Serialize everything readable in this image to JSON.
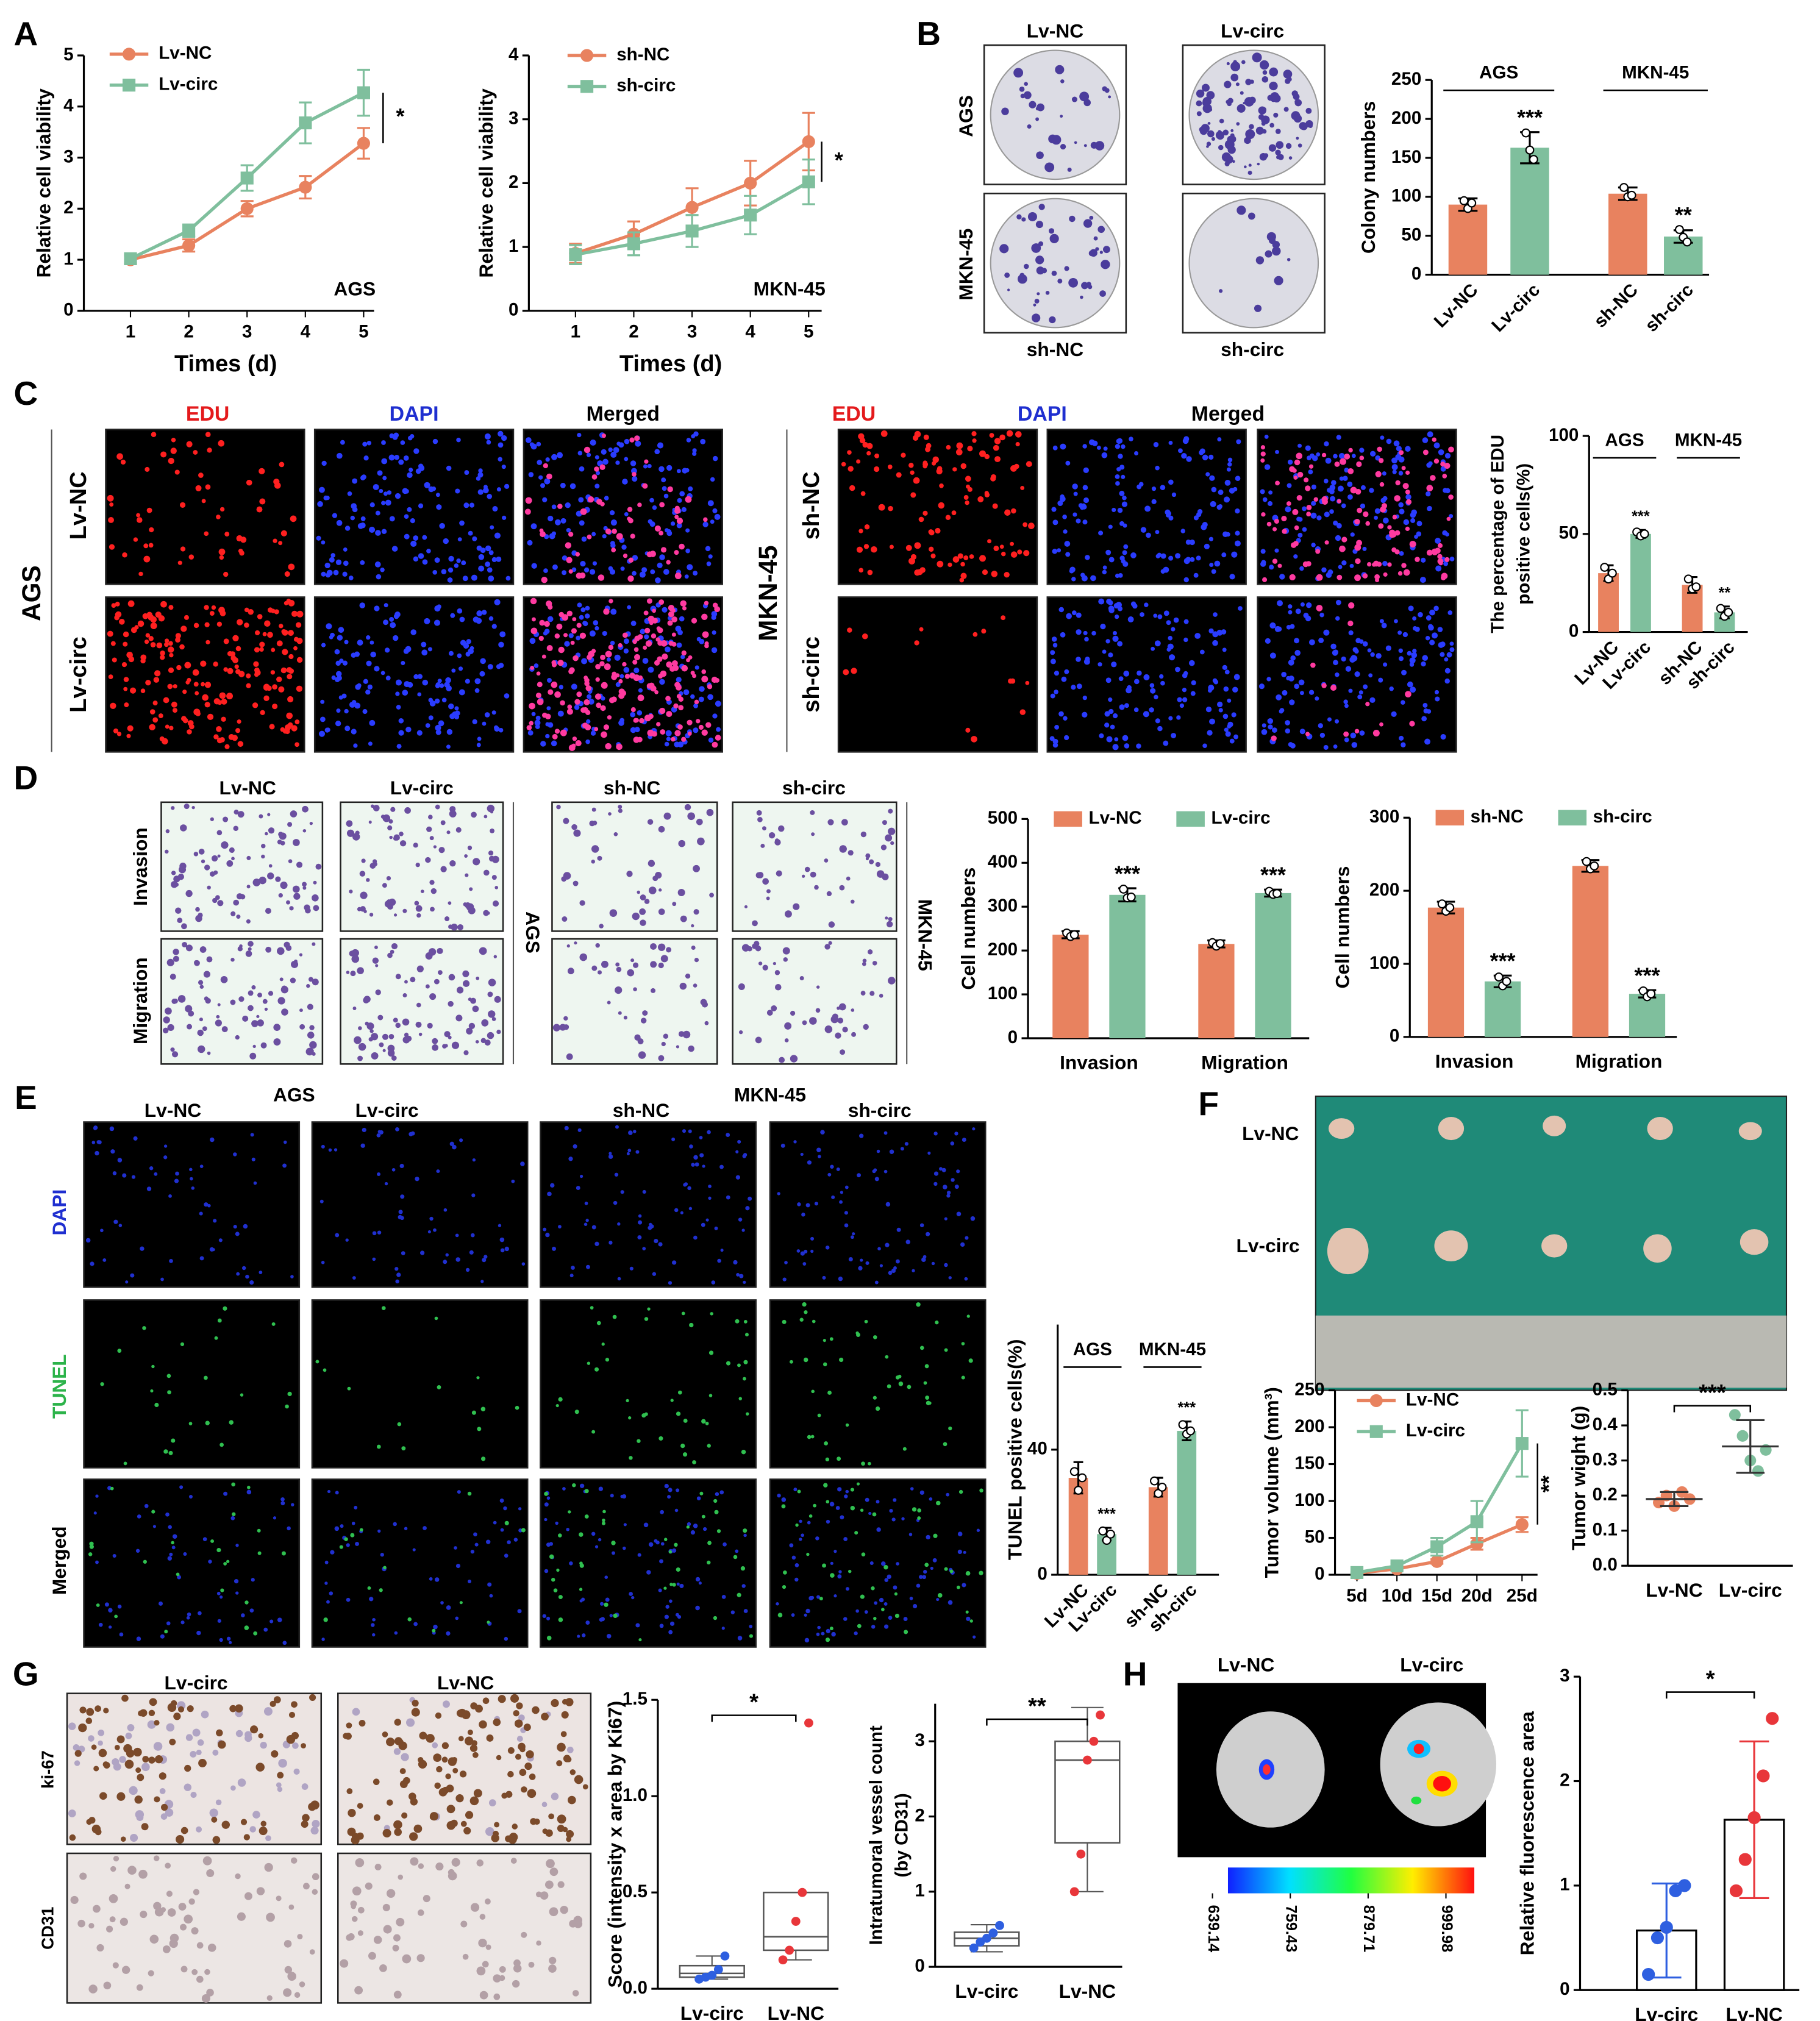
{
  "figure": {
    "panel_letters": [
      "A",
      "B",
      "C",
      "D",
      "E",
      "F",
      "G",
      "H"
    ],
    "image_labels": [
      "Lv-NC",
      "Lv-circ",
      "AGS",
      "MKN-45",
      "sh-NC",
      "sh-circ",
      "EDU",
      "DAPI",
      "Merged",
      "EDU",
      "DAPI",
      "Merged",
      "AGS",
      "Lv-NC",
      "Lv-circ",
      "MKN-45",
      "sh-NC",
      "sh-circ",
      "Lv-NC",
      "Lv-circ",
      "sh-NC",
      "sh-circ",
      "Invasion",
      "Migration",
      "AGS",
      "MKN-45",
      "AGS",
      "MKN-45",
      "Lv-NC",
      "Lv-circ",
      "sh-NC",
      "sh-circ",
      "DAPI",
      "TUNEL",
      "Merged",
      "Lv-NC",
      "Lv-circ",
      "Lv-circ",
      "Lv-NC",
      "ki-67",
      "CD31",
      "Lv-NC",
      "Lv-circ"
    ],
    "colorbar_ticks": [
      639.14,
      759.43,
      879.71,
      999.98
    ]
  },
  "chart_data": [
    {
      "type": "line",
      "x": [
        1,
        2,
        3,
        4,
        5
      ],
      "xlim": [
        0.2,
        5.4
      ],
      "xticks": [
        1,
        2,
        3,
        4,
        5
      ],
      "ylim": [
        0,
        5
      ],
      "yticks": [
        0,
        1,
        2,
        3,
        4,
        5
      ],
      "xlabel": "Times (d)",
      "ylabel": "Relative cell viability",
      "annotation": "AGS",
      "significance": "*",
      "series": [
        {
          "name": "Lv-NC",
          "color": "#e8825f",
          "marker": "circle",
          "values": [
            1.0,
            1.28,
            2.0,
            2.42,
            3.28
          ],
          "errors": [
            0.08,
            0.12,
            0.15,
            0.22,
            0.3
          ]
        },
        {
          "name": "Lv-circ",
          "color": "#7fbf9d",
          "marker": "square",
          "values": [
            1.02,
            1.57,
            2.6,
            3.68,
            4.27
          ],
          "errors": [
            0.08,
            0.12,
            0.25,
            0.4,
            0.45
          ]
        }
      ]
    },
    {
      "type": "line",
      "x": [
        1,
        2,
        3,
        4,
        5
      ],
      "xlim": [
        0.2,
        5.4
      ],
      "xticks": [
        1,
        2,
        3,
        4,
        5
      ],
      "ylim": [
        0,
        4
      ],
      "yticks": [
        0,
        1,
        2,
        3,
        4
      ],
      "xlabel": "Times (d)",
      "ylabel": "Relative cell viability",
      "annotation": "MKN-45",
      "significance": "*",
      "series": [
        {
          "name": "sh-NC",
          "color": "#e8825f",
          "marker": "circle",
          "values": [
            0.9,
            1.2,
            1.62,
            2.0,
            2.65
          ],
          "errors": [
            0.15,
            0.2,
            0.3,
            0.35,
            0.45
          ]
        },
        {
          "name": "sh-circ",
          "color": "#7fbf9d",
          "marker": "square",
          "values": [
            0.88,
            1.05,
            1.25,
            1.5,
            2.02
          ],
          "errors": [
            0.15,
            0.18,
            0.25,
            0.3,
            0.35
          ]
        }
      ]
    },
    {
      "type": "bar",
      "categories": [
        "Lv-NC",
        "Lv-circ",
        "sh-NC",
        "sh-circ"
      ],
      "values": [
        90,
        163,
        104,
        49
      ],
      "errors": [
        8,
        20,
        8,
        8
      ],
      "points": [
        [
          95,
          85,
          92
        ],
        [
          182,
          160,
          148
        ],
        [
          112,
          100,
          102
        ],
        [
          58,
          48,
          42
        ]
      ],
      "colors": [
        "#e8825f",
        "#7fbf9d",
        "#e8825f",
        "#7fbf9d"
      ],
      "ylim": [
        0,
        250
      ],
      "yticks": [
        0,
        50,
        100,
        150,
        200,
        250
      ],
      "ylabel": "Colony numbers",
      "groups": [
        "AGS",
        "MKN-45"
      ],
      "significance": [
        null,
        "***",
        null,
        "**"
      ]
    },
    {
      "type": "bar",
      "categories": [
        "Lv-NC",
        "Lv-circ",
        "sh-NC",
        "sh-circ"
      ],
      "values": [
        30,
        50,
        24,
        10
      ],
      "errors": [
        4,
        2,
        4,
        3
      ],
      "points": [
        [
          33,
          27,
          30
        ],
        [
          51,
          49,
          50
        ],
        [
          27,
          22,
          23
        ],
        [
          12,
          8,
          10
        ]
      ],
      "colors": [
        "#e8825f",
        "#7fbf9d",
        "#e8825f",
        "#7fbf9d"
      ],
      "ylim": [
        0,
        100
      ],
      "yticks": [
        0,
        50,
        100
      ],
      "ylabel_lines": [
        "The percentage of EDU",
        "positive cells(%)"
      ],
      "groups": [
        "AGS",
        "MKN-45"
      ],
      "significance": [
        null,
        "***",
        null,
        "**"
      ]
    },
    {
      "type": "bar",
      "categories": [
        "Invasion",
        "Migration"
      ],
      "ylim": [
        0,
        500
      ],
      "yticks": [
        0,
        100,
        200,
        300,
        400,
        500
      ],
      "ylabel": "Cell numbers",
      "significance": [
        "***",
        "***"
      ],
      "series": [
        {
          "name": "Lv-NC",
          "color": "#e8825f",
          "values": [
            236,
            215
          ],
          "errors": [
            8,
            8
          ],
          "points": [
            [
              240,
              232,
              236
            ],
            [
              218,
              210,
              216
            ]
          ]
        },
        {
          "name": "Lv-circ",
          "color": "#7fbf9d",
          "values": [
            327,
            331
          ],
          "errors": [
            15,
            8
          ],
          "points": [
            [
              340,
              320,
              322
            ],
            [
              335,
              328,
              330
            ]
          ]
        }
      ]
    },
    {
      "type": "bar",
      "categories": [
        "Invasion",
        "Migration"
      ],
      "ylim": [
        0,
        300
      ],
      "yticks": [
        0,
        100,
        200,
        300
      ],
      "ylabel": "Cell numbers",
      "significance": [
        "***",
        "***"
      ],
      "series": [
        {
          "name": "sh-NC",
          "color": "#e8825f",
          "values": [
            177,
            234
          ],
          "errors": [
            8,
            8
          ],
          "points": [
            [
              182,
              172,
              177
            ],
            [
              240,
              230,
              234
            ]
          ]
        },
        {
          "name": "sh-circ",
          "color": "#7fbf9d",
          "values": [
            76,
            59
          ],
          "errors": [
            8,
            5
          ],
          "points": [
            [
              82,
              70,
              76
            ],
            [
              63,
              55,
              59
            ]
          ]
        }
      ]
    },
    {
      "type": "bar",
      "categories": [
        "Lv-NC",
        "Lv-circ",
        "sh-NC",
        "sh-circ"
      ],
      "values": [
        31,
        13,
        28,
        46
      ],
      "errors": [
        5,
        2,
        3,
        3
      ],
      "points": [
        [
          33,
          27,
          31
        ],
        [
          14,
          11,
          13
        ],
        [
          30,
          26,
          28
        ],
        [
          48,
          45,
          46
        ]
      ],
      "colors": [
        "#e8825f",
        "#7fbf9d",
        "#e8825f",
        "#7fbf9d"
      ],
      "ylim": [
        0,
        80
      ],
      "yticks": [
        0,
        40
      ],
      "ylabel": "TUNEL positive cells(%)",
      "groups": [
        "AGS",
        "MKN-45"
      ],
      "significance": [
        null,
        "***",
        null,
        "***"
      ]
    },
    {
      "type": "line",
      "categories": [
        "5d",
        "10d",
        "15d",
        "20d",
        "25d"
      ],
      "ylim": [
        0,
        250
      ],
      "yticks": [
        0,
        50,
        100,
        150,
        200,
        250
      ],
      "ylabel": "Tumor volume (mm³)",
      "significance": "**",
      "series": [
        {
          "name": "Lv-NC",
          "color": "#e8825f",
          "marker": "circle",
          "values": [
            2,
            8,
            18,
            42,
            68
          ],
          "errors": [
            1,
            2,
            3,
            8,
            10
          ]
        },
        {
          "name": "Lv-circ",
          "color": "#7fbf9d",
          "marker": "square",
          "values": [
            3,
            12,
            38,
            72,
            178
          ],
          "errors": [
            1,
            3,
            12,
            28,
            45
          ]
        }
      ]
    },
    {
      "type": "dot",
      "categories": [
        "Lv-NC",
        "Lv-circ"
      ],
      "points": [
        [
          0.18,
          0.2,
          0.17,
          0.21,
          0.19
        ],
        [
          0.43,
          0.37,
          0.3,
          0.27,
          0.33
        ]
      ],
      "means": [
        0.19,
        0.34
      ],
      "errors": [
        0.02,
        0.075
      ],
      "colors": [
        "#e8825f",
        "#7fbf9d"
      ],
      "ylim": [
        0,
        0.5
      ],
      "yticks": [
        {
          "value": 0,
          "label": "0.0"
        },
        0.1,
        0.2,
        0.3,
        0.4,
        0.5
      ],
      "ylabel": "Tumor wight (g)",
      "significance": "***"
    },
    {
      "type": "box",
      "categories": [
        "Lv-circ",
        "Lv-NC"
      ],
      "boxes": [
        {
          "min": 0.05,
          "q1": 0.06,
          "median": 0.08,
          "q3": 0.12,
          "max": 0.17
        },
        {
          "min": 0.15,
          "q1": 0.2,
          "median": 0.27,
          "q3": 0.5,
          "max": 0.5
        }
      ],
      "points": [
        [
          0.05,
          0.06,
          0.07,
          0.1,
          0.17
        ],
        [
          0.15,
          0.2,
          0.35,
          0.5,
          1.38
        ]
      ],
      "point_colors": [
        "#2e5fe0",
        "#e8363a"
      ],
      "ylim": [
        0,
        1.5
      ],
      "yticks": [
        {
          "value": 0,
          "label": "0.0"
        },
        0.5,
        {
          "value": 1,
          "label": "1.0"
        },
        1.5
      ],
      "ylabel": "Score (intensity x area by Ki67)",
      "significance": "*"
    },
    {
      "type": "box",
      "categories": [
        "Lv-circ",
        "Lv-NC"
      ],
      "boxes": [
        {
          "min": 0.2,
          "q1": 0.28,
          "median": 0.38,
          "q3": 0.46,
          "max": 0.56
        },
        {
          "min": 1.0,
          "q1": 1.65,
          "median": 2.75,
          "q3": 3.0,
          "max": 3.45
        }
      ],
      "points": [
        [
          0.25,
          0.33,
          0.38,
          0.45,
          0.55
        ],
        [
          1.0,
          1.5,
          2.75,
          3.0,
          3.35
        ]
      ],
      "point_colors": [
        "#2e5fe0",
        "#e8363a"
      ],
      "ylim": [
        0,
        3.5
      ],
      "yticks": [
        0,
        1,
        2,
        3
      ],
      "ylabel_lines": [
        "Intratumoral vessel count",
        "(by CD31)"
      ],
      "significance": "**"
    },
    {
      "type": "bar",
      "categories": [
        "Lv-circ",
        "Lv-NC"
      ],
      "values": [
        0.57,
        1.63
      ],
      "errors": [
        0.45,
        0.75
      ],
      "points": [
        [
          0.15,
          0.5,
          0.6,
          0.95,
          1.0
        ],
        [
          0.95,
          1.25,
          1.65,
          2.05,
          2.6
        ]
      ],
      "colors": [
        "#2e5fe0",
        "#e8363a"
      ],
      "bar_outline": true,
      "ylim": [
        0,
        3
      ],
      "yticks": [
        0,
        1,
        2,
        3
      ],
      "ylabel": "Relative fluorescence area",
      "significance": "*"
    }
  ]
}
